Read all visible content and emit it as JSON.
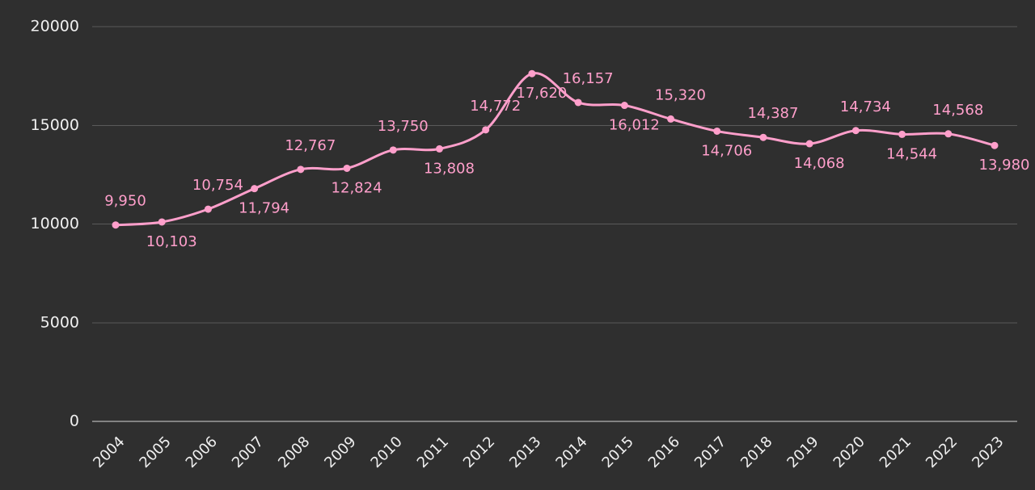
{
  "chart_data": {
    "type": "line",
    "title": "",
    "xlabel": "",
    "ylabel": "",
    "x": [
      "2004",
      "2005",
      "2006",
      "2007",
      "2008",
      "2009",
      "2010",
      "2011",
      "2012",
      "2013",
      "2014",
      "2015",
      "2016",
      "2017",
      "2018",
      "2019",
      "2020",
      "2021",
      "2022",
      "2023"
    ],
    "series": [
      {
        "values": [
          9950,
          10103,
          10754,
          11794,
          12767,
          12824,
          13750,
          13808,
          14772,
          17620,
          16157,
          16012,
          15320,
          14706,
          14387,
          14068,
          14734,
          14544,
          14568,
          13980
        ],
        "data_labels": [
          "9,950",
          "10,103",
          "10,754",
          "11,794",
          "12,767",
          "12,824",
          "13,750",
          "13,808",
          "14,772",
          "17,620",
          "16,157",
          "16,012",
          "15,320",
          "14,706",
          "14,387",
          "14,068",
          "14,734",
          "14,544",
          "14,568",
          "13,980"
        ]
      }
    ],
    "ylim": [
      0,
      20000
    ],
    "yticks": [
      "0",
      "5000",
      "10000",
      "15000",
      "20000"
    ],
    "grid": true,
    "legend": "none",
    "colors": {
      "background": "#2f2f2f",
      "series": "#ff9fcb",
      "grid": "#5a5a5a",
      "text": "#f0f0f0"
    }
  }
}
